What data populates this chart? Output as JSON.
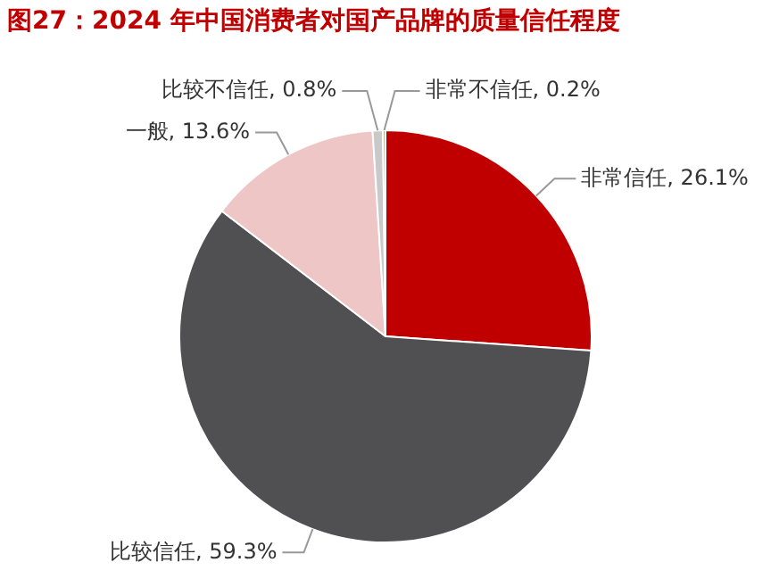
{
  "chart_data": {
    "type": "pie",
    "title": "图27：2024 年中国消费者对国产品牌的质量信任程度",
    "categories": [
      "非常信任",
      "比较信任",
      "一般",
      "比较不信任",
      "非常不信任"
    ],
    "values": [
      26.1,
      59.3,
      13.6,
      0.8,
      0.2
    ],
    "colors": [
      "#c00000",
      "#505052",
      "#efc6c6",
      "#c9c9c9",
      "#b5a37f"
    ],
    "value_labels": [
      "26.1%",
      "59.3%",
      "13.6%",
      "0.8%",
      "0.2%"
    ],
    "legend": false
  }
}
